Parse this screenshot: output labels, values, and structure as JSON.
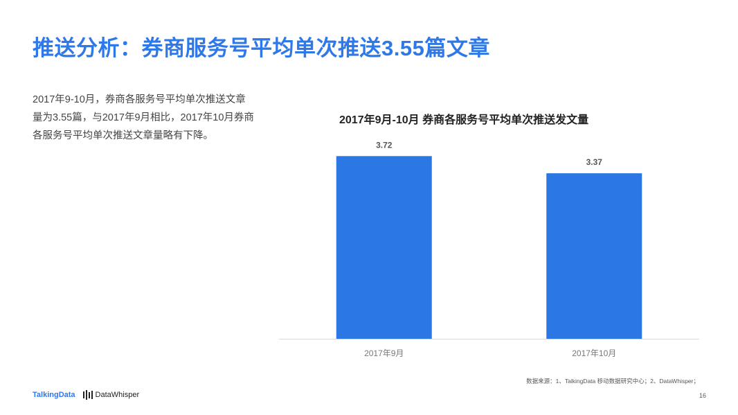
{
  "slide": {
    "title": "推送分析：券商服务号平均单次推送3.55篇文章",
    "description": "2017年9-10月，券商各服务号平均单次推送文章量为3.55篇，与2017年9月相比，2017年10月券商各服务号平均单次推送文章量略有下降。",
    "source_note": "数据来源：1、TalkingData 移动数据研究中心；2、DataWhisper；",
    "page_number": "16",
    "logos": {
      "talkingdata": "TalkingData",
      "datawhisper": "DataWhisper"
    }
  },
  "colors": {
    "accent": "#2e78e8",
    "bar": "#2b78e4"
  },
  "chart_data": {
    "type": "bar",
    "title": "2017年9月-10月 券商各服务号平均单次推送发文量",
    "categories": [
      "2017年9月",
      "2017年10月"
    ],
    "values": [
      3.72,
      3.37
    ],
    "data_labels": [
      "3.72",
      "3.37"
    ],
    "xlabel": "",
    "ylabel": "",
    "ylim": [
      0,
      4.5
    ],
    "grid": false,
    "legend": "none"
  }
}
